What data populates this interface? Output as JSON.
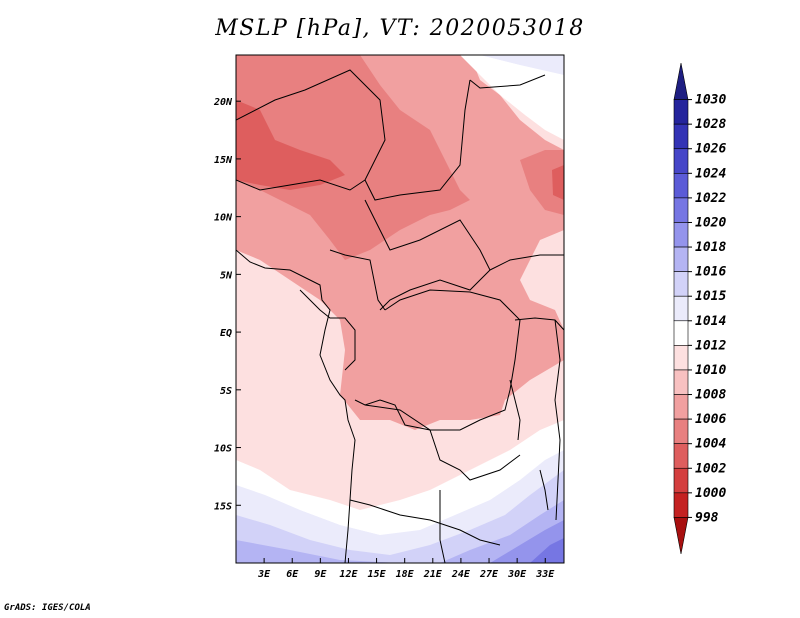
{
  "title": "MSLP [hPa], VT: 2020053018",
  "footer": "GrADS: IGES/COLA",
  "map": {
    "lon_range": [
      0,
      35
    ],
    "lat_range": [
      -20,
      24
    ],
    "lon_ticks": [
      "3E",
      "6E",
      "9E",
      "12E",
      "15E",
      "18E",
      "21E",
      "24E",
      "27E",
      "30E",
      "33E"
    ],
    "lat_ticks": [
      "20N",
      "15N",
      "10N",
      "5N",
      "EQ",
      "5S",
      "10S",
      "15S"
    ]
  },
  "colorbar": {
    "labels": [
      "1030",
      "1028",
      "1026",
      "1024",
      "1022",
      "1020",
      "1018",
      "1016",
      "1015",
      "1014",
      "1012",
      "1010",
      "1008",
      "1006",
      "1004",
      "1002",
      "1000",
      "998"
    ],
    "colors": [
      "#1e1e82",
      "#24249c",
      "#3333b5",
      "#4646c8",
      "#5b5bd7",
      "#7676e3",
      "#9494ec",
      "#b4b4f3",
      "#d2d2f8",
      "#ebebfb",
      "#ffffff",
      "#fde0e0",
      "#f8c1c1",
      "#f1a0a0",
      "#e88080",
      "#de5e5e",
      "#d43f3f",
      "#c42222",
      "#a81010"
    ]
  }
}
